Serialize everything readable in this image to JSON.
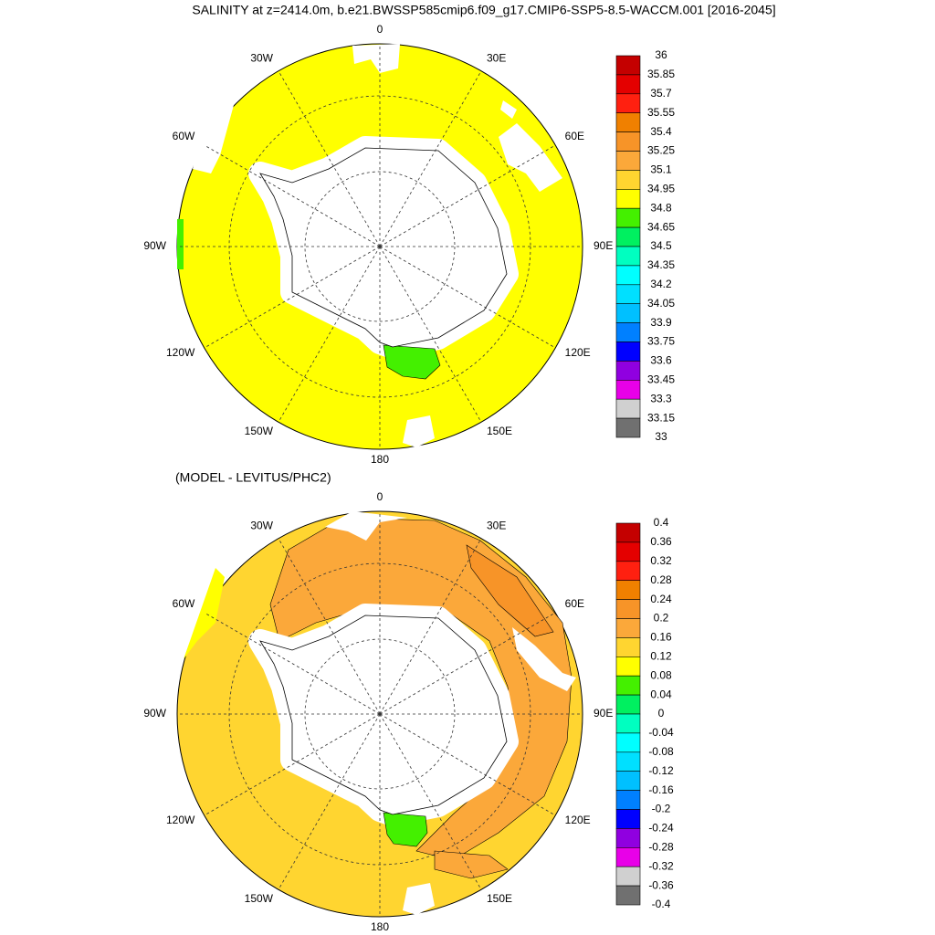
{
  "title": "SALINITY at z=2414.0m, b.e21.BWSSP585cmip6.f09_g17.CMIP6-SSP5-8.5-WACCM.001 [2016-2045]",
  "maps": [
    {
      "lon_labels": [
        "0",
        "30E",
        "60E",
        "90E",
        "120E",
        "150E",
        "180",
        "150W",
        "120W",
        "90W",
        "60W",
        "30W"
      ],
      "colorbar": {
        "labels": [
          "36",
          "35.85",
          "35.7",
          "35.55",
          "35.4",
          "35.25",
          "35.1",
          "34.95",
          "34.8",
          "34.65",
          "34.5",
          "34.35",
          "34.2",
          "34.05",
          "33.9",
          "33.75",
          "33.6",
          "33.45",
          "33.3",
          "33.15",
          "33"
        ],
        "colors": [
          "#c40000",
          "#e40000",
          "#ff2010",
          "#f08000",
          "#f79428",
          "#fba83a",
          "#ffd530",
          "#ffff00",
          "#44f000",
          "#00f060",
          "#00ffc0",
          "#00ffff",
          "#00e0ff",
          "#00c0ff",
          "#0080ff",
          "#0000ff",
          "#9000e0",
          "#e800e8",
          "#d0d0d0",
          "#707070"
        ]
      }
    },
    {
      "subtitle": "(MODEL - LEVITUS/PHC2)",
      "lon_labels": [
        "0",
        "30E",
        "60E",
        "90E",
        "120E",
        "150E",
        "180",
        "150W",
        "120W",
        "90W",
        "60W",
        "30W"
      ],
      "colorbar": {
        "labels": [
          "0.4",
          "0.36",
          "0.32",
          "0.28",
          "0.24",
          "0.2",
          "0.16",
          "0.12",
          "0.08",
          "0.04",
          "0",
          "-0.04",
          "-0.08",
          "-0.12",
          "-0.16",
          "-0.2",
          "-0.24",
          "-0.28",
          "-0.32",
          "-0.36",
          "-0.4"
        ],
        "colors": [
          "#c40000",
          "#e40000",
          "#ff2010",
          "#f08000",
          "#f79428",
          "#fba83a",
          "#ffd530",
          "#ffff00",
          "#44f000",
          "#00f060",
          "#00ffc0",
          "#00ffff",
          "#00e0ff",
          "#00c0ff",
          "#0080ff",
          "#0000ff",
          "#9000e0",
          "#e800e8",
          "#d0d0d0",
          "#707070"
        ]
      }
    }
  ]
}
